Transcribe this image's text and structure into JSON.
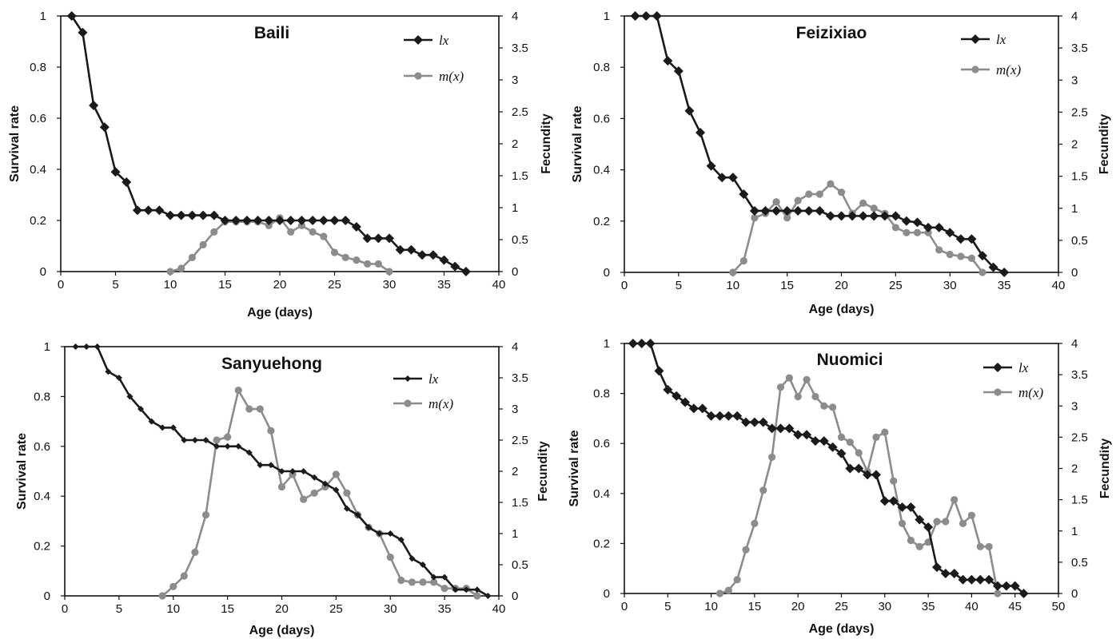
{
  "figure": {
    "colors": {
      "lx": "#1a1a1a",
      "mx": "#8c8c8c",
      "axis": "#111111"
    }
  },
  "chart_data": [
    {
      "type": "line",
      "title": "Baili",
      "xlabel": "Age (days)",
      "ylabel": "Survival rate",
      "y2label": "Fecundity",
      "xlim": [
        0,
        40
      ],
      "ylim": [
        0,
        1
      ],
      "y2lim": [
        0,
        4
      ],
      "xticks": [
        0,
        5,
        10,
        15,
        20,
        25,
        30,
        35,
        40
      ],
      "yticks": [
        0,
        0.2,
        0.4,
        0.6,
        0.8,
        1
      ],
      "y2ticks": [
        0,
        0.5,
        1,
        1.5,
        2,
        2.5,
        3,
        3.5,
        4
      ],
      "legend_position": "top-right",
      "grid": false,
      "series": [
        {
          "name": "lx",
          "axis": "left",
          "marker": "diamond",
          "x": [
            1,
            2,
            3,
            4,
            5,
            6,
            7,
            8,
            9,
            10,
            11,
            12,
            13,
            14,
            15,
            16,
            17,
            18,
            19,
            20,
            21,
            22,
            23,
            24,
            25,
            26,
            27,
            28,
            29,
            30,
            31,
            32,
            33,
            34,
            35,
            36,
            37
          ],
          "y": [
            1,
            0.935,
            0.65,
            0.565,
            0.39,
            0.35,
            0.24,
            0.24,
            0.24,
            0.22,
            0.22,
            0.22,
            0.22,
            0.22,
            0.2,
            0.2,
            0.2,
            0.2,
            0.2,
            0.2,
            0.2,
            0.2,
            0.2,
            0.2,
            0.2,
            0.2,
            0.175,
            0.13,
            0.13,
            0.13,
            0.085,
            0.085,
            0.065,
            0.065,
            0.045,
            0.02,
            0
          ]
        },
        {
          "name": "m(x)",
          "axis": "right",
          "marker": "circle",
          "x": [
            10,
            11,
            12,
            13,
            14,
            15,
            16,
            17,
            18,
            19,
            20,
            21,
            22,
            23,
            24,
            25,
            26,
            27,
            28,
            29,
            30
          ],
          "y": [
            0,
            0.05,
            0.22,
            0.42,
            0.62,
            0.78,
            0.78,
            0.78,
            0.78,
            0.72,
            0.84,
            0.62,
            0.72,
            0.62,
            0.55,
            0.3,
            0.22,
            0.18,
            0.12,
            0.12,
            0
          ]
        }
      ]
    },
    {
      "type": "line",
      "title": "Feizixiao",
      "xlabel": "Age (days)",
      "ylabel": "Survival rate",
      "y2label": "Fecundity",
      "xlim": [
        0,
        40
      ],
      "ylim": [
        0,
        1
      ],
      "y2lim": [
        0,
        4
      ],
      "xticks": [
        0,
        5,
        10,
        15,
        20,
        25,
        30,
        35,
        40
      ],
      "yticks": [
        0,
        0.2,
        0.4,
        0.6,
        0.8,
        1
      ],
      "y2ticks": [
        0,
        0.5,
        1,
        1.5,
        2,
        2.5,
        3,
        3.5,
        4
      ],
      "legend_position": "top-right",
      "grid": false,
      "series": [
        {
          "name": "lx",
          "axis": "left",
          "marker": "diamond",
          "x": [
            1,
            2,
            3,
            4,
            5,
            6,
            7,
            8,
            9,
            10,
            11,
            12,
            13,
            14,
            15,
            16,
            17,
            18,
            19,
            20,
            21,
            22,
            23,
            24,
            25,
            26,
            27,
            28,
            29,
            30,
            31,
            32,
            33,
            34,
            35
          ],
          "y": [
            1,
            1,
            1,
            0.825,
            0.785,
            0.63,
            0.545,
            0.415,
            0.37,
            0.37,
            0.305,
            0.24,
            0.24,
            0.24,
            0.24,
            0.24,
            0.24,
            0.24,
            0.22,
            0.22,
            0.22,
            0.22,
            0.22,
            0.22,
            0.22,
            0.2,
            0.195,
            0.175,
            0.175,
            0.155,
            0.13,
            0.13,
            0.065,
            0.02,
            0
          ]
        },
        {
          "name": "m(x)",
          "axis": "right",
          "marker": "circle",
          "x": [
            10,
            11,
            12,
            13,
            14,
            15,
            16,
            17,
            18,
            19,
            20,
            21,
            22,
            23,
            24,
            25,
            26,
            27,
            28,
            29,
            30,
            31,
            32,
            33
          ],
          "y": [
            0,
            0.18,
            0.85,
            0.92,
            1.1,
            0.85,
            1.12,
            1.22,
            1.22,
            1.38,
            1.25,
            0.92,
            1.08,
            1.0,
            0.92,
            0.7,
            0.62,
            0.62,
            0.62,
            0.35,
            0.28,
            0.25,
            0.22,
            0
          ]
        }
      ]
    },
    {
      "type": "line",
      "title": "Sanyuehong",
      "xlabel": "Age (days)",
      "ylabel": "Survival rate",
      "y2label": "Fecundity",
      "xlim": [
        0,
        40
      ],
      "ylim": [
        0,
        1
      ],
      "y2lim": [
        0,
        4
      ],
      "xticks": [
        0,
        5,
        10,
        15,
        20,
        25,
        30,
        35,
        40
      ],
      "yticks": [
        0,
        0.2,
        0.4,
        0.6,
        0.8,
        1
      ],
      "y2ticks": [
        0,
        0.5,
        1,
        1.5,
        2,
        2.5,
        3,
        3.5,
        4
      ],
      "legend_position": "top-right",
      "grid": false,
      "series": [
        {
          "name": "lx",
          "axis": "left",
          "marker": "diamond-small",
          "x": [
            1,
            2,
            3,
            4,
            5,
            6,
            7,
            8,
            9,
            10,
            11,
            12,
            13,
            14,
            15,
            16,
            17,
            18,
            19,
            20,
            21,
            22,
            23,
            24,
            25,
            26,
            27,
            28,
            29,
            30,
            31,
            32,
            33,
            34,
            35,
            36,
            37,
            38,
            39
          ],
          "y": [
            1,
            1,
            1,
            0.9,
            0.875,
            0.8,
            0.75,
            0.7,
            0.675,
            0.675,
            0.625,
            0.625,
            0.625,
            0.6,
            0.6,
            0.6,
            0.575,
            0.525,
            0.525,
            0.5,
            0.5,
            0.5,
            0.475,
            0.45,
            0.425,
            0.35,
            0.325,
            0.275,
            0.25,
            0.25,
            0.225,
            0.15,
            0.125,
            0.075,
            0.075,
            0.025,
            0.025,
            0.025,
            0
          ]
        },
        {
          "name": "m(x)",
          "axis": "right",
          "marker": "circle",
          "x": [
            9,
            10,
            11,
            12,
            13,
            14,
            15,
            16,
            17,
            18,
            19,
            20,
            21,
            22,
            23,
            24,
            25,
            26,
            27,
            28,
            29,
            30,
            31,
            32,
            33,
            34,
            35,
            36,
            37,
            38
          ],
          "y": [
            0,
            0.15,
            0.32,
            0.7,
            1.3,
            2.5,
            2.55,
            3.3,
            3.0,
            3.0,
            2.65,
            1.75,
            1.95,
            1.55,
            1.65,
            1.75,
            1.95,
            1.65,
            1.3,
            1.1,
            1.0,
            0.62,
            0.25,
            0.22,
            0.22,
            0.22,
            0.12,
            0.12,
            0.12,
            0
          ]
        }
      ]
    },
    {
      "type": "line",
      "title": "Nuomici",
      "xlabel": "Age (days)",
      "ylabel": "Survival rate",
      "y2label": "Fecundity",
      "xlim": [
        0,
        50
      ],
      "ylim": [
        0,
        1
      ],
      "y2lim": [
        0,
        4
      ],
      "xticks": [
        0,
        5,
        10,
        15,
        20,
        25,
        30,
        35,
        40,
        45,
        50
      ],
      "yticks": [
        0,
        0.2,
        0.4,
        0.6,
        0.8,
        1
      ],
      "y2ticks": [
        0,
        0.5,
        1,
        1.5,
        2,
        2.5,
        3,
        3.5,
        4
      ],
      "legend_position": "top-right",
      "grid": false,
      "series": [
        {
          "name": "lx",
          "axis": "left",
          "marker": "diamond",
          "x": [
            1,
            2,
            3,
            4,
            5,
            6,
            7,
            8,
            9,
            10,
            11,
            12,
            13,
            14,
            15,
            16,
            17,
            18,
            19,
            20,
            21,
            22,
            23,
            24,
            25,
            26,
            27,
            28,
            29,
            30,
            31,
            32,
            33,
            34,
            35,
            36,
            37,
            38,
            39,
            40,
            41,
            42,
            43,
            44,
            45,
            46
          ],
          "y": [
            1,
            1,
            1,
            0.89,
            0.815,
            0.79,
            0.765,
            0.74,
            0.74,
            0.71,
            0.71,
            0.71,
            0.71,
            0.685,
            0.685,
            0.685,
            0.66,
            0.66,
            0.66,
            0.635,
            0.635,
            0.61,
            0.61,
            0.585,
            0.56,
            0.5,
            0.5,
            0.475,
            0.475,
            0.37,
            0.37,
            0.345,
            0.345,
            0.295,
            0.265,
            0.105,
            0.08,
            0.08,
            0.055,
            0.055,
            0.055,
            0.055,
            0.03,
            0.03,
            0.03,
            0
          ]
        },
        {
          "name": "m(x)",
          "axis": "right",
          "marker": "circle",
          "x": [
            11,
            12,
            13,
            14,
            15,
            16,
            17,
            18,
            19,
            20,
            21,
            22,
            23,
            24,
            25,
            26,
            27,
            28,
            29,
            30,
            31,
            32,
            33,
            34,
            35,
            36,
            37,
            38,
            39,
            40,
            41,
            42,
            43
          ],
          "y": [
            0,
            0.05,
            0.22,
            0.7,
            1.12,
            1.65,
            2.18,
            3.3,
            3.45,
            3.15,
            3.42,
            3.15,
            3.0,
            2.98,
            2.5,
            2.42,
            2.25,
            1.95,
            2.5,
            2.58,
            1.8,
            1.12,
            0.85,
            0.75,
            0.82,
            1.15,
            1.15,
            1.5,
            1.12,
            1.25,
            0.75,
            0.75,
            0
          ]
        }
      ]
    }
  ]
}
